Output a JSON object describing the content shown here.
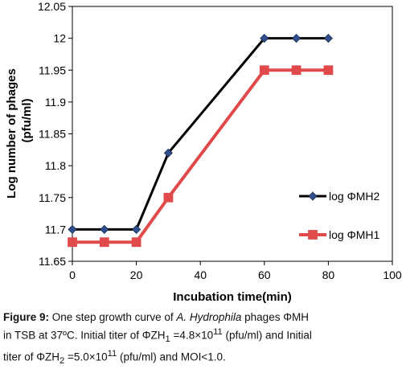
{
  "chart_data": {
    "type": "line",
    "xlabel": "Incubation time(min)",
    "ylabel_line1": "Log  number of phages",
    "ylabel_line2": "(pfu/ml)",
    "xlim": [
      0,
      100
    ],
    "ylim": [
      11.65,
      12.05
    ],
    "x_ticks": [
      "0",
      "20",
      "40",
      "60",
      "80",
      "100"
    ],
    "y_ticks": [
      "11.65",
      "11.7",
      "11.75",
      "11.8",
      "11.85",
      "11.9",
      "11.95",
      "12",
      "12.05"
    ],
    "grid": false,
    "legend_position": "right",
    "series": [
      {
        "name": "log ΦMH2",
        "color": "#000000",
        "marker": "diamond",
        "marker_color": "#2F4F8F",
        "x": [
          0,
          10,
          20,
          30,
          60,
          70,
          80
        ],
        "values": [
          11.7,
          11.7,
          11.7,
          11.82,
          12.0,
          12.0,
          12.0
        ]
      },
      {
        "name": "log ΦMH1",
        "color": "#E04A4A",
        "marker": "square",
        "marker_color": "#E04A4A",
        "x": [
          0,
          10,
          20,
          30,
          60,
          70,
          80
        ],
        "values": [
          11.68,
          11.68,
          11.68,
          11.75,
          11.95,
          11.95,
          11.95
        ]
      }
    ]
  },
  "caption": {
    "figure_label": "Figure 9:",
    "text_before_italic": " One step growth curve of ",
    "italic": "A. Hydrophila",
    "text_after_italic": " phages ΦMH",
    "line2_a": "in TSB at 37ºC. Initial titer of ΦZH",
    "line2_sub": "1",
    "line2_b": " =4.8×10",
    "line2_sup": "11",
    "line2_c": " (pfu/ml) and Initial",
    "line3_a": "titer of ΦZH",
    "line3_sub": "2",
    "line3_b": " =5.0×10",
    "line3_sup": "11",
    "line3_c": " (pfu/ml) and MOI<1.0."
  }
}
